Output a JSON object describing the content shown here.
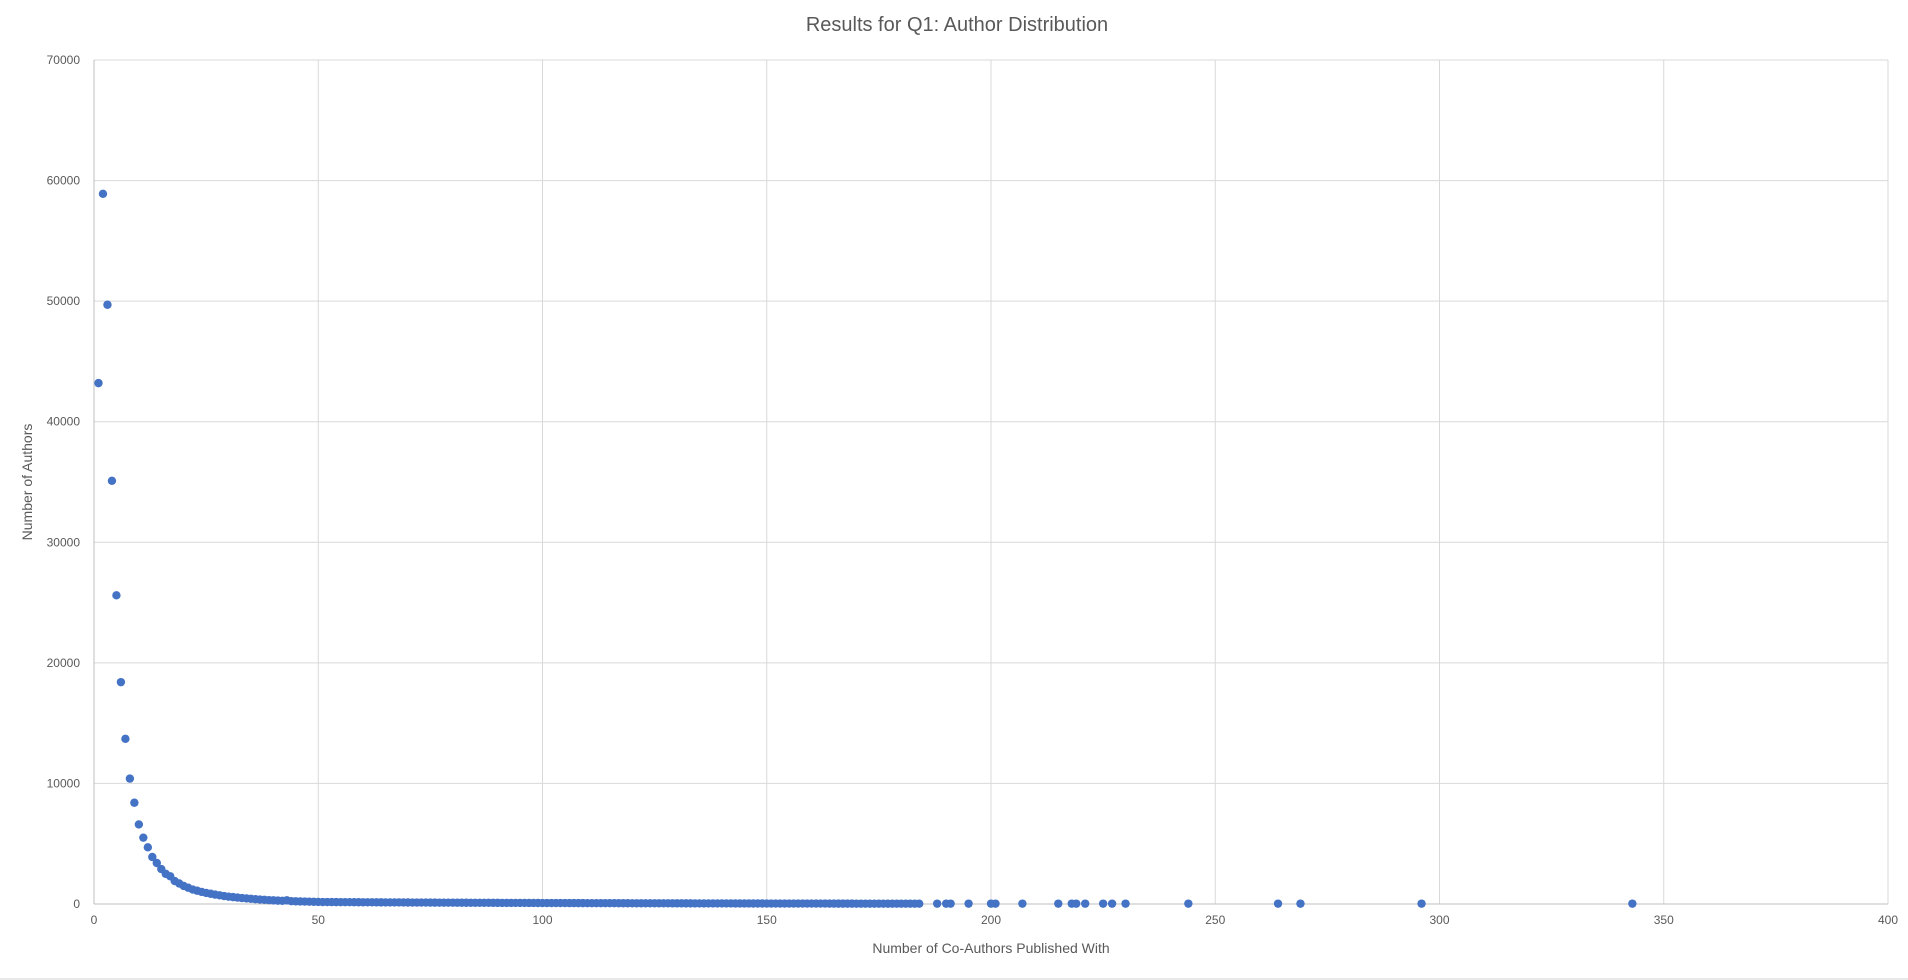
{
  "chart_data": {
    "type": "scatter",
    "title": "Results for Q1: Author Distribution",
    "xlabel": "Number of Co-Authors Published With",
    "ylabel": "Number of Authors",
    "xlim": [
      0,
      400
    ],
    "ylim": [
      0,
      70000
    ],
    "x_ticks": [
      0,
      50,
      100,
      150,
      200,
      250,
      300,
      350,
      400
    ],
    "y_ticks": [
      0,
      10000,
      20000,
      30000,
      40000,
      50000,
      60000,
      70000
    ],
    "grid": true,
    "legend": "none",
    "marker_color": "#4472c4",
    "points_explicit": [
      [
        1,
        43200
      ],
      [
        2,
        58900
      ],
      [
        3,
        49700
      ],
      [
        4,
        35100
      ],
      [
        5,
        25600
      ],
      [
        6,
        18400
      ],
      [
        7,
        13700
      ],
      [
        8,
        10400
      ],
      [
        9,
        8400
      ],
      [
        10,
        6600
      ],
      [
        11,
        5500
      ],
      [
        12,
        4700
      ],
      [
        13,
        3900
      ],
      [
        14,
        3400
      ],
      [
        15,
        2900
      ],
      [
        16,
        2500
      ],
      [
        17,
        2300
      ],
      [
        18,
        1900
      ],
      [
        19,
        1700
      ],
      [
        20,
        1500
      ],
      [
        21,
        1350
      ],
      [
        22,
        1200
      ],
      [
        23,
        1100
      ],
      [
        24,
        1000
      ],
      [
        25,
        920
      ],
      [
        26,
        850
      ],
      [
        27,
        780
      ],
      [
        28,
        720
      ],
      [
        29,
        660
      ],
      [
        30,
        610
      ],
      [
        31,
        570
      ],
      [
        32,
        530
      ],
      [
        33,
        490
      ],
      [
        34,
        460
      ],
      [
        35,
        430
      ],
      [
        36,
        400
      ],
      [
        37,
        370
      ],
      [
        38,
        345
      ],
      [
        39,
        320
      ],
      [
        40,
        300
      ],
      [
        41,
        280
      ],
      [
        42,
        265
      ],
      [
        43,
        300
      ],
      [
        44,
        235
      ],
      [
        45,
        220
      ],
      [
        46,
        210
      ],
      [
        47,
        200
      ],
      [
        48,
        190
      ],
      [
        49,
        180
      ],
      [
        50,
        170
      ]
    ],
    "dense_run": {
      "x_from": 51,
      "x_to": 184,
      "y_start": 162,
      "y_end": 25
    },
    "points_sparse": [
      [
        188,
        30
      ],
      [
        190,
        30
      ],
      [
        191,
        30
      ],
      [
        195,
        30
      ],
      [
        200,
        30
      ],
      [
        201,
        30
      ],
      [
        207,
        30
      ],
      [
        215,
        30
      ],
      [
        218,
        30
      ],
      [
        219,
        30
      ],
      [
        221,
        30
      ],
      [
        225,
        30
      ],
      [
        227,
        30
      ],
      [
        230,
        30
      ],
      [
        244,
        30
      ],
      [
        264,
        30
      ],
      [
        269,
        30
      ],
      [
        296,
        30
      ],
      [
        343,
        30
      ]
    ]
  }
}
